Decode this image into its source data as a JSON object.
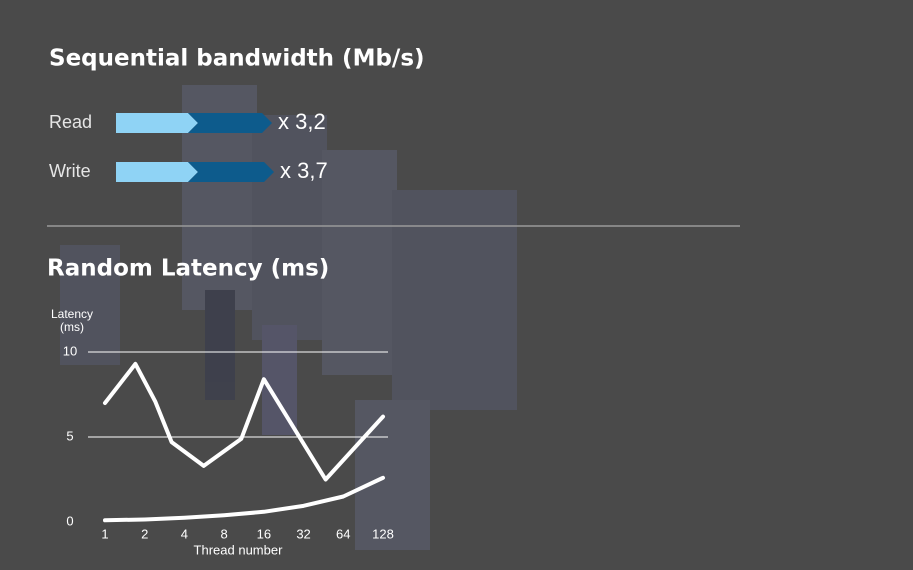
{
  "bandwidth": {
    "title": "Sequential bandwidth (Mb/s)",
    "rows": [
      {
        "label": "Read",
        "factor": "x 3,2"
      },
      {
        "label": "Write",
        "factor": "x 3,7"
      }
    ]
  },
  "chart_data": {
    "type": "line",
    "title": "Random Latency (ms)",
    "y_label": "Latency (ms)",
    "x_label": "Thread number",
    "xlog_base": 2,
    "xlim": [
      1,
      128
    ],
    "xticks": [
      1,
      2,
      4,
      8,
      16,
      32,
      64,
      128
    ],
    "ylim": [
      0,
      10
    ],
    "yticks": [
      0,
      5,
      10
    ],
    "grid": true,
    "series": [
      {
        "color": "#ffffff",
        "x": [
          1,
          1.7,
          2.4,
          3.2,
          5.6,
          10.8,
          16,
          47,
          128
        ],
        "values": [
          7.0,
          9.3,
          7.1,
          4.7,
          3.3,
          4.9,
          8.4,
          2.5,
          6.2
        ]
      },
      {
        "color": "#ffffff",
        "x": [
          1,
          2,
          4,
          8,
          16,
          32,
          64,
          128
        ],
        "values": [
          0.1,
          0.15,
          0.25,
          0.4,
          0.6,
          0.95,
          1.5,
          2.6
        ]
      }
    ]
  }
}
